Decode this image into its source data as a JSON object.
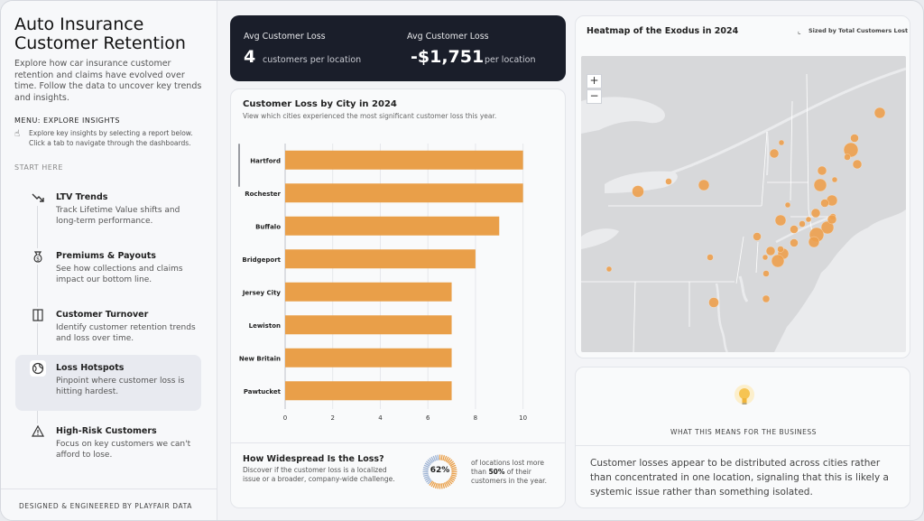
{
  "app": {
    "title": "Auto Insurance Customer Retention",
    "description": "Explore how car insurance customer retention and claims have evolved over time. Follow the data to uncover key trends and insights."
  },
  "menu": {
    "title": "MENU: EXPLORE INSIGHTS",
    "hint": "Explore key insights by selecting a report below. Click a tab to navigate through the dashboards.",
    "start_here": "START HERE",
    "items": [
      {
        "label": "LTV Trends",
        "desc": "Track Lifetime Value shifts and long-term performance.",
        "icon": "trend-down-icon",
        "active": false
      },
      {
        "label": "Premiums & Payouts",
        "desc": "See how collections and claims impact our bottom line.",
        "icon": "money-bag-icon",
        "active": false
      },
      {
        "label": "Customer Turnover",
        "desc": "Identify customer retention trends and loss over time.",
        "icon": "door-icon",
        "active": false
      },
      {
        "label": "Loss Hotspots",
        "desc": "Pinpoint where customer loss is hitting hardest.",
        "icon": "globe-icon",
        "active": true
      },
      {
        "label": "High-Risk Customers",
        "desc": "Focus on key customers we can't afford to lose.",
        "icon": "warning-icon",
        "active": false
      }
    ],
    "footer": "DESIGNED & ENGINEERED BY PLAYFAIR DATA"
  },
  "kpis": [
    {
      "label": "Avg Customer Loss",
      "value": "4",
      "unit": "customers per location"
    },
    {
      "label": "Avg Customer Loss",
      "value": "-$1,751",
      "unit": "per location"
    }
  ],
  "bar_card": {
    "title": "Customer Loss by City in 2024",
    "subtitle": "View which cities experienced the most significant customer loss this year."
  },
  "chart_data": {
    "type": "bar",
    "orientation": "horizontal",
    "categories": [
      "Hartford",
      "Rochester",
      "Buffalo",
      "Bridgeport",
      "Jersey City",
      "Lewiston",
      "New Britain",
      "Pawtucket"
    ],
    "values": [
      10,
      10,
      9,
      8,
      7,
      7,
      7,
      7
    ],
    "x_ticks": [
      0,
      2,
      4,
      6,
      8,
      10
    ],
    "xlim": [
      0,
      11
    ],
    "color": "#e99f49",
    "grid": true
  },
  "spread": {
    "title": "How Widespread Is the Loss?",
    "desc": "Discover if the customer loss is a localized issue or a broader, company-wide challenge.",
    "percent": 62,
    "percent_label": "62%",
    "stat_pre": "of locations lost more than ",
    "stat_bold": "50%",
    "stat_post": " of their customers in the year."
  },
  "map": {
    "title": "Heatmap of the Exodus in 2024",
    "size_legend": "Sized by Total Customers Lost",
    "zoom_in": "+",
    "zoom_out": "−",
    "info": "i",
    "bubble_color": "#eda04c"
  },
  "insight": {
    "heading": "WHAT THIS MEANS FOR THE BUSINESS",
    "text": "Customer losses appear to be distributed across cities rather than concentrated in one location, signaling that this is likely a systemic issue rather than something isolated."
  }
}
